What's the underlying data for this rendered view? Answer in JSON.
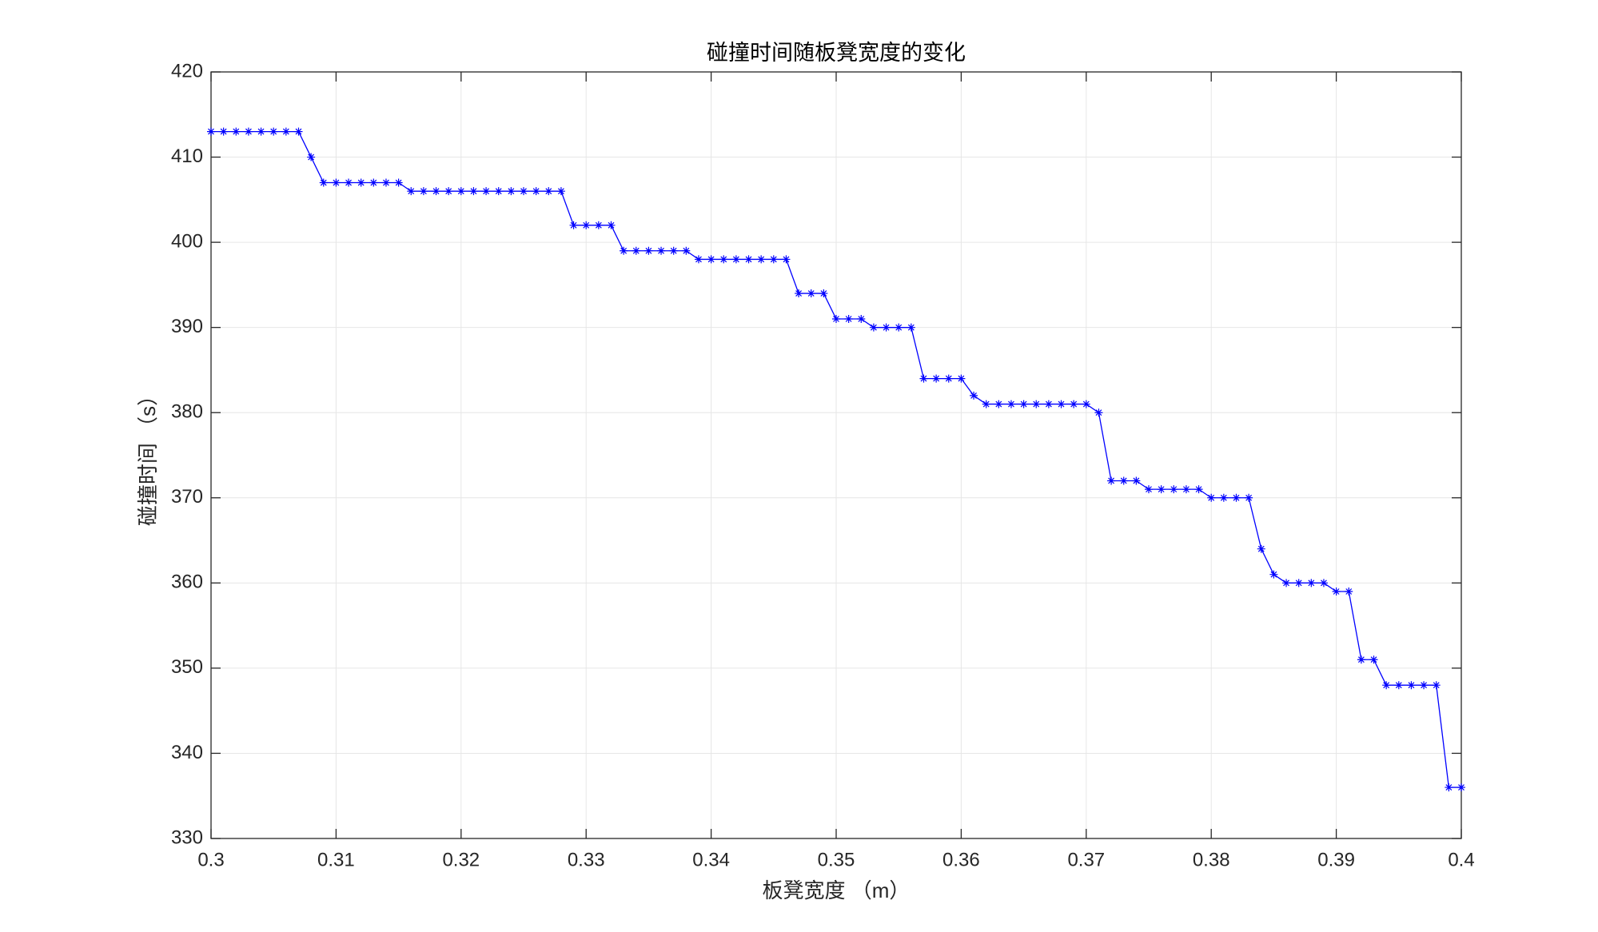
{
  "chart_data": {
    "type": "line",
    "title": "碰撞时间随板凳宽度的变化",
    "x_label": "板凳宽度 （m）",
    "y_label": "碰撞时间 （s）",
    "x": [
      0.3,
      0.301,
      0.302,
      0.303,
      0.304,
      0.305,
      0.306,
      0.307,
      0.308,
      0.309,
      0.31,
      0.311,
      0.312,
      0.313,
      0.314,
      0.315,
      0.316,
      0.317,
      0.318,
      0.319,
      0.32,
      0.321,
      0.322,
      0.323,
      0.324,
      0.325,
      0.326,
      0.327,
      0.328,
      0.329,
      0.33,
      0.331,
      0.332,
      0.333,
      0.334,
      0.335,
      0.336,
      0.337,
      0.338,
      0.339,
      0.34,
      0.341,
      0.342,
      0.343,
      0.344,
      0.345,
      0.346,
      0.347,
      0.348,
      0.349,
      0.35,
      0.351,
      0.352,
      0.353,
      0.354,
      0.355,
      0.356,
      0.357,
      0.358,
      0.359,
      0.36,
      0.361,
      0.362,
      0.363,
      0.364,
      0.365,
      0.366,
      0.367,
      0.368,
      0.369,
      0.37,
      0.371,
      0.372,
      0.373,
      0.374,
      0.375,
      0.376,
      0.377,
      0.378,
      0.379,
      0.38,
      0.381,
      0.382,
      0.383,
      0.384,
      0.385,
      0.386,
      0.387,
      0.388,
      0.389,
      0.39,
      0.391,
      0.392,
      0.393,
      0.394,
      0.395,
      0.396,
      0.397,
      0.398,
      0.399,
      0.4
    ],
    "series": [
      {
        "color": "#0000ff",
        "values": [
          413,
          413,
          413,
          413,
          413,
          413,
          413,
          413,
          410,
          407,
          407,
          407,
          407,
          407,
          407,
          407,
          406,
          406,
          406,
          406,
          406,
          406,
          406,
          406,
          406,
          406,
          406,
          406,
          406,
          402,
          402,
          402,
          402,
          399,
          399,
          399,
          399,
          399,
          399,
          398,
          398,
          398,
          398,
          398,
          398,
          398,
          398,
          394,
          394,
          394,
          391,
          391,
          391,
          390,
          390,
          390,
          390,
          384,
          384,
          384,
          384,
          382,
          381,
          381,
          381,
          381,
          381,
          381,
          381,
          381,
          381,
          380,
          372,
          372,
          372,
          371,
          371,
          371,
          371,
          371,
          370,
          370,
          370,
          370,
          364,
          361,
          360,
          360,
          360,
          360,
          359,
          359,
          351,
          351,
          348,
          348,
          348,
          348,
          348,
          336,
          336
        ]
      }
    ],
    "xlim": [
      0.3,
      0.4
    ],
    "xticks": [
      0.3,
      0.31,
      0.32,
      0.33,
      0.34,
      0.35,
      0.36,
      0.37,
      0.38,
      0.39,
      0.4
    ],
    "ylim": [
      330,
      420
    ],
    "yticks": [
      330,
      340,
      350,
      360,
      370,
      380,
      390,
      400,
      410,
      420
    ],
    "grid": true
  }
}
